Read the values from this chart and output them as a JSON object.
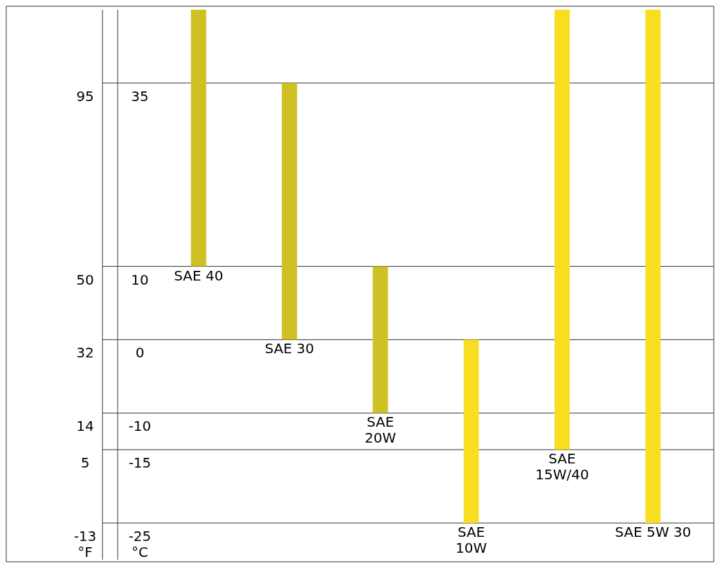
{
  "chart_data": {
    "type": "bar",
    "categories": [
      "SAE 40",
      "SAE 30",
      "SAE\n20W",
      "SAE\n10W",
      "SAE\n15W/40",
      "SAE 5W 30"
    ],
    "base": [
      10,
      0,
      -10,
      -25,
      -15,
      -25
    ],
    "values": [
      35,
      35,
      20,
      25,
      60,
      70
    ],
    "colors": [
      "#cfc023",
      "#cfc023",
      "#cfc023",
      "#f8de21",
      "#f8de21",
      "#f8de21"
    ],
    "ylim": [
      -30,
      45
    ],
    "yticks": [
      -25,
      -15,
      -10,
      0,
      10,
      35
    ],
    "y2lim": [
      -22,
      113
    ],
    "y2ticks": [
      -13,
      5,
      14,
      32,
      50,
      95
    ],
    "ylabel": "°C",
    "y2label": "°F",
    "grid": "y"
  }
}
